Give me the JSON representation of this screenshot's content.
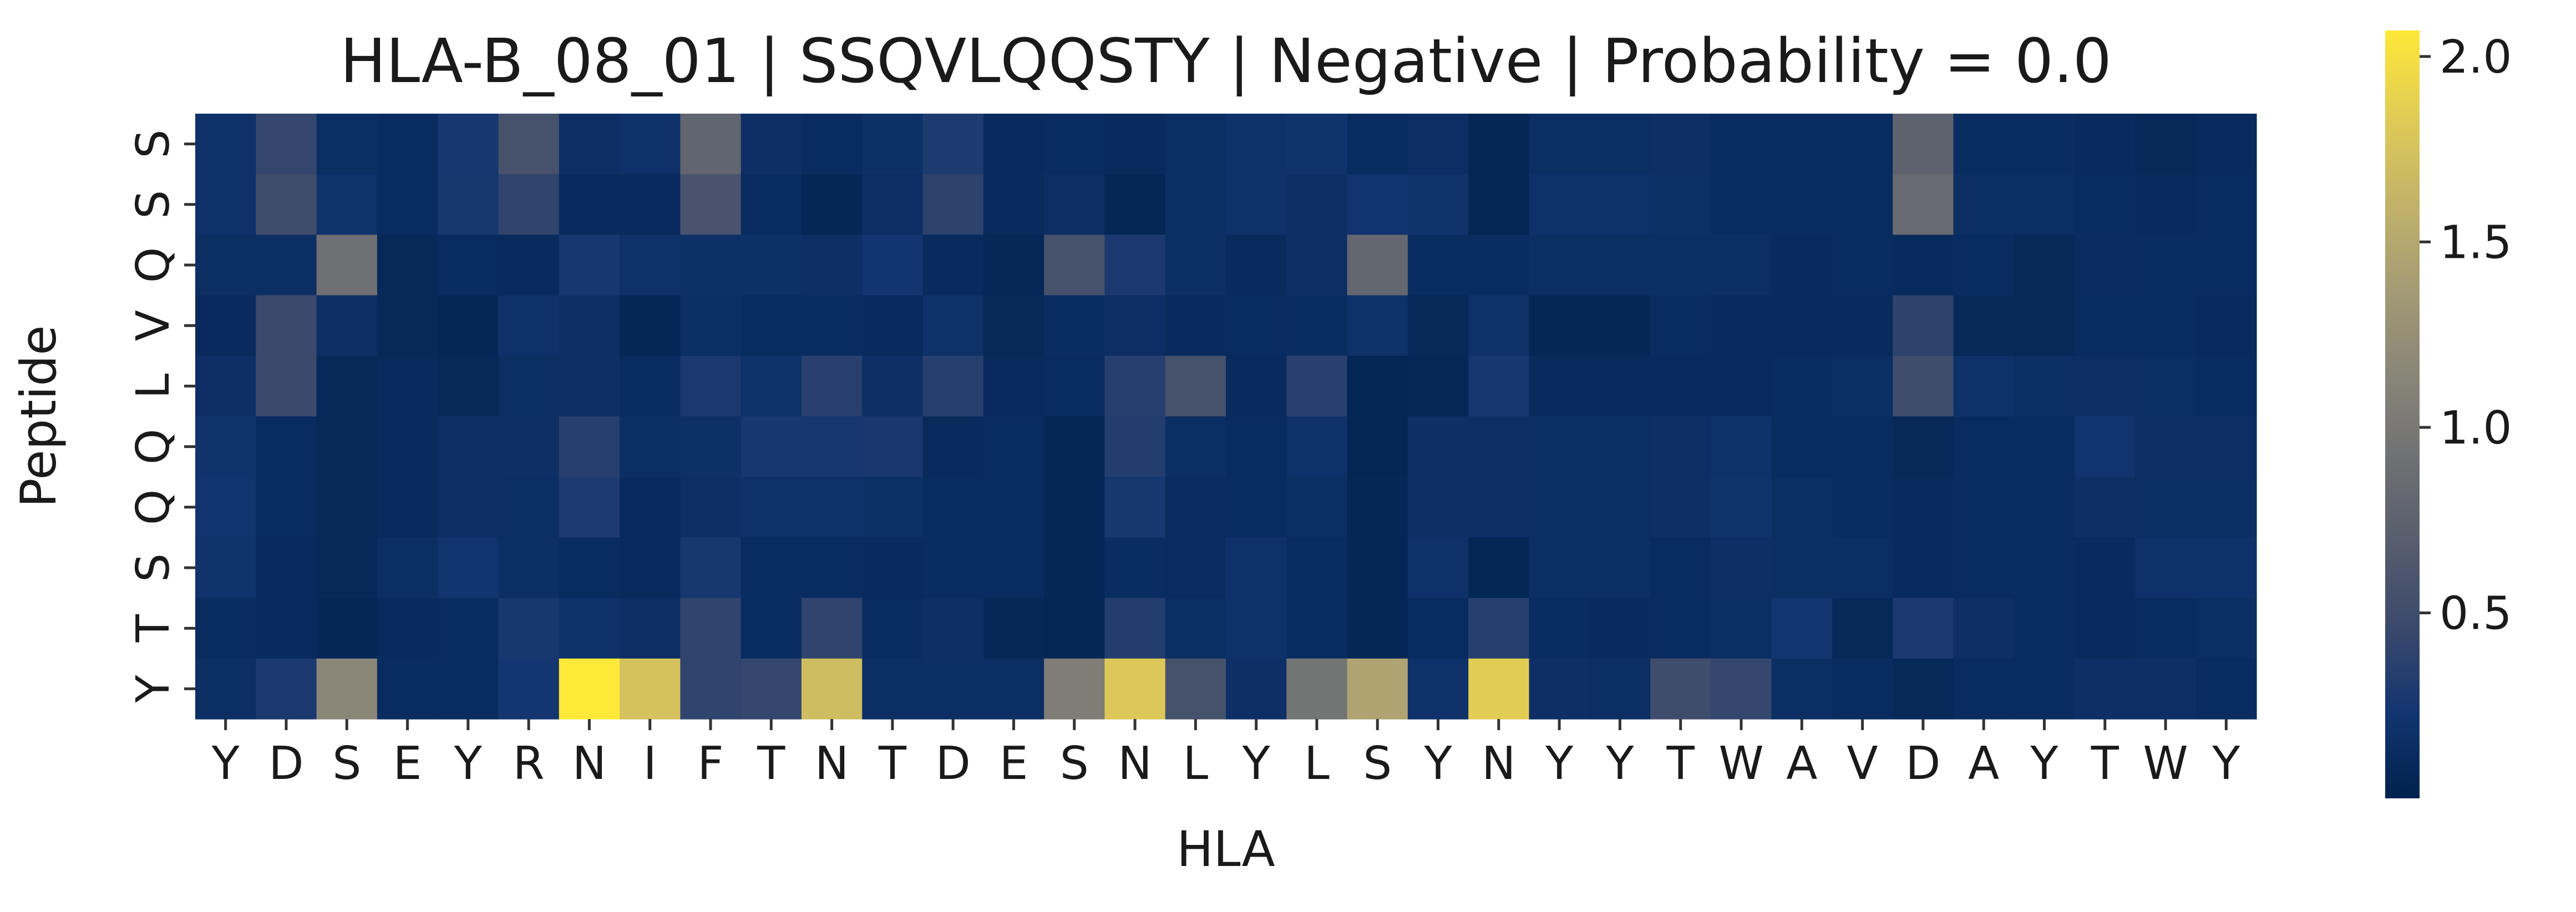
{
  "chart_data": {
    "type": "heatmap",
    "title": "HLA-B_08_01 | SSQVLQQSTY | Negative | Probability = 0.0",
    "xlabel": "HLA",
    "ylabel": "Peptide",
    "x_labels": [
      "Y",
      "D",
      "S",
      "E",
      "Y",
      "R",
      "N",
      "I",
      "F",
      "T",
      "N",
      "T",
      "D",
      "E",
      "S",
      "N",
      "L",
      "Y",
      "L",
      "S",
      "Y",
      "N",
      "Y",
      "Y",
      "T",
      "W",
      "A",
      "V",
      "D",
      "A",
      "Y",
      "T",
      "W",
      "Y"
    ],
    "y_labels": [
      "S",
      "S",
      "Q",
      "V",
      "L",
      "Q",
      "Q",
      "S",
      "T",
      "Y"
    ],
    "colormap": "cividis",
    "colormap_stops": [
      "#00224e",
      "#123570",
      "#3b496c",
      "#575d6d",
      "#707173",
      "#8a8678",
      "#a59c74",
      "#c3b369",
      "#e1cc55",
      "#fee838"
    ],
    "colorbar": {
      "vmin": 0.0,
      "vmax": 2.07,
      "ticks": [
        0.5,
        1.0,
        1.5,
        2.0
      ],
      "tick_labels": [
        "0.5",
        "1.0",
        "1.5",
        "2.0"
      ]
    },
    "values": [
      [
        0.18,
        0.42,
        0.14,
        0.12,
        0.25,
        0.55,
        0.15,
        0.18,
        0.78,
        0.16,
        0.12,
        0.17,
        0.3,
        0.1,
        0.12,
        0.1,
        0.14,
        0.18,
        0.2,
        0.12,
        0.15,
        0.05,
        0.14,
        0.14,
        0.16,
        0.12,
        0.12,
        0.12,
        0.75,
        0.13,
        0.13,
        0.1,
        0.08,
        0.1
      ],
      [
        0.18,
        0.5,
        0.2,
        0.12,
        0.26,
        0.4,
        0.1,
        0.1,
        0.58,
        0.12,
        0.06,
        0.15,
        0.38,
        0.1,
        0.15,
        0.05,
        0.14,
        0.18,
        0.16,
        0.22,
        0.2,
        0.05,
        0.18,
        0.18,
        0.17,
        0.12,
        0.12,
        0.12,
        0.85,
        0.14,
        0.14,
        0.12,
        0.1,
        0.12
      ],
      [
        0.14,
        0.14,
        0.9,
        0.08,
        0.12,
        0.1,
        0.25,
        0.18,
        0.17,
        0.17,
        0.16,
        0.23,
        0.1,
        0.07,
        0.55,
        0.28,
        0.14,
        0.1,
        0.16,
        0.8,
        0.13,
        0.13,
        0.14,
        0.14,
        0.14,
        0.14,
        0.1,
        0.12,
        0.1,
        0.12,
        0.08,
        0.11,
        0.12,
        0.12
      ],
      [
        0.1,
        0.46,
        0.16,
        0.08,
        0.06,
        0.18,
        0.16,
        0.06,
        0.14,
        0.12,
        0.12,
        0.1,
        0.18,
        0.08,
        0.13,
        0.15,
        0.1,
        0.12,
        0.13,
        0.18,
        0.08,
        0.18,
        0.06,
        0.06,
        0.12,
        0.1,
        0.1,
        0.1,
        0.38,
        0.08,
        0.08,
        0.12,
        0.12,
        0.1
      ],
      [
        0.16,
        0.46,
        0.08,
        0.1,
        0.08,
        0.14,
        0.16,
        0.12,
        0.28,
        0.18,
        0.36,
        0.16,
        0.34,
        0.1,
        0.12,
        0.35,
        0.55,
        0.1,
        0.36,
        0.05,
        0.07,
        0.25,
        0.1,
        0.1,
        0.1,
        0.1,
        0.12,
        0.14,
        0.5,
        0.18,
        0.14,
        0.15,
        0.14,
        0.12
      ],
      [
        0.2,
        0.12,
        0.08,
        0.1,
        0.16,
        0.16,
        0.35,
        0.14,
        0.17,
        0.25,
        0.25,
        0.27,
        0.1,
        0.12,
        0.06,
        0.32,
        0.14,
        0.12,
        0.18,
        0.05,
        0.16,
        0.16,
        0.14,
        0.14,
        0.16,
        0.18,
        0.12,
        0.12,
        0.08,
        0.12,
        0.12,
        0.22,
        0.15,
        0.15
      ],
      [
        0.22,
        0.12,
        0.08,
        0.1,
        0.16,
        0.14,
        0.3,
        0.1,
        0.16,
        0.18,
        0.18,
        0.17,
        0.12,
        0.12,
        0.06,
        0.26,
        0.11,
        0.12,
        0.14,
        0.06,
        0.16,
        0.16,
        0.14,
        0.14,
        0.16,
        0.2,
        0.14,
        0.12,
        0.1,
        0.12,
        0.12,
        0.16,
        0.14,
        0.14
      ],
      [
        0.2,
        0.1,
        0.08,
        0.14,
        0.22,
        0.14,
        0.12,
        0.1,
        0.26,
        0.12,
        0.12,
        0.1,
        0.12,
        0.12,
        0.06,
        0.13,
        0.11,
        0.18,
        0.12,
        0.06,
        0.18,
        0.05,
        0.14,
        0.14,
        0.12,
        0.16,
        0.14,
        0.14,
        0.1,
        0.12,
        0.12,
        0.1,
        0.18,
        0.18
      ],
      [
        0.12,
        0.1,
        0.06,
        0.1,
        0.12,
        0.26,
        0.18,
        0.16,
        0.4,
        0.12,
        0.4,
        0.12,
        0.16,
        0.07,
        0.06,
        0.32,
        0.14,
        0.18,
        0.12,
        0.06,
        0.12,
        0.34,
        0.12,
        0.1,
        0.12,
        0.14,
        0.24,
        0.08,
        0.28,
        0.16,
        0.12,
        0.1,
        0.12,
        0.14
      ],
      [
        0.14,
        0.28,
        1.15,
        0.12,
        0.12,
        0.24,
        2.07,
        1.75,
        0.4,
        0.42,
        1.7,
        0.14,
        0.14,
        0.14,
        1.05,
        1.8,
        0.55,
        0.16,
        0.95,
        1.45,
        0.18,
        1.85,
        0.16,
        0.14,
        0.5,
        0.42,
        0.14,
        0.12,
        0.08,
        0.12,
        0.12,
        0.16,
        0.16,
        0.12
      ]
    ]
  }
}
